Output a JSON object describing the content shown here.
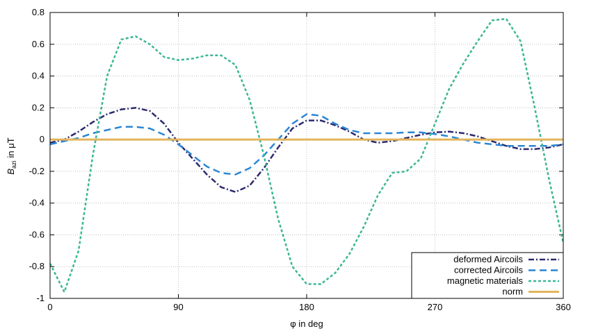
{
  "chart_data": {
    "type": "line",
    "xlabel": "φ in deg",
    "ylabel": {
      "symbol": "B",
      "subscript": "azi",
      "rest": "in μT"
    },
    "x": [
      0,
      10,
      20,
      30,
      40,
      50,
      60,
      70,
      80,
      90,
      100,
      110,
      120,
      130,
      140,
      150,
      160,
      170,
      180,
      190,
      200,
      210,
      220,
      230,
      240,
      250,
      260,
      270,
      280,
      290,
      300,
      310,
      320,
      330,
      340,
      350,
      360
    ],
    "series": [
      {
        "name": "deformed Aircoils",
        "color": "#2b2a6e",
        "dash": "8,3,2,3",
        "values": [
          -0.02,
          0.0,
          0.05,
          0.11,
          0.16,
          0.19,
          0.2,
          0.18,
          0.1,
          -0.02,
          -0.12,
          -0.22,
          -0.3,
          -0.33,
          -0.29,
          -0.18,
          -0.05,
          0.07,
          0.12,
          0.12,
          0.09,
          0.05,
          0.0,
          -0.02,
          -0.01,
          0.01,
          0.03,
          0.045,
          0.05,
          0.04,
          0.02,
          -0.01,
          -0.04,
          -0.06,
          -0.06,
          -0.05,
          -0.03
        ]
      },
      {
        "name": "corrected Aircoils",
        "color": "#2a86d4",
        "dash": "10,6",
        "values": [
          -0.03,
          -0.01,
          0.01,
          0.04,
          0.06,
          0.08,
          0.08,
          0.07,
          0.03,
          -0.03,
          -0.1,
          -0.17,
          -0.21,
          -0.22,
          -0.18,
          -0.1,
          0.0,
          0.1,
          0.16,
          0.15,
          0.1,
          0.06,
          0.04,
          0.04,
          0.04,
          0.045,
          0.045,
          0.035,
          0.02,
          0.0,
          -0.02,
          -0.03,
          -0.04,
          -0.04,
          -0.04,
          -0.04,
          -0.03
        ]
      },
      {
        "name": "magnetic materials",
        "color": "#3ab795",
        "dash": "4,3",
        "values": [
          -0.78,
          -0.96,
          -0.7,
          -0.1,
          0.4,
          0.63,
          0.65,
          0.6,
          0.52,
          0.5,
          0.51,
          0.53,
          0.53,
          0.47,
          0.25,
          -0.1,
          -0.5,
          -0.8,
          -0.91,
          -0.91,
          -0.84,
          -0.72,
          -0.55,
          -0.35,
          -0.21,
          -0.2,
          -0.12,
          0.1,
          0.32,
          0.48,
          0.62,
          0.75,
          0.76,
          0.62,
          0.2,
          -0.25,
          -0.65
        ]
      },
      {
        "name": "norm",
        "color": "#e3b35a",
        "dash": "none",
        "values": [
          0,
          0,
          0,
          0,
          0,
          0,
          0,
          0,
          0,
          0,
          0,
          0,
          0,
          0,
          0,
          0,
          0,
          0,
          0,
          0,
          0,
          0,
          0,
          0,
          0,
          0,
          0,
          0,
          0,
          0,
          0,
          0,
          0,
          0,
          0,
          0,
          0
        ]
      }
    ],
    "xlim": [
      0,
      360
    ],
    "xticks": [
      0,
      90,
      180,
      270,
      360
    ],
    "ylim": [
      -1,
      0.8
    ],
    "yticks": [
      0.8,
      0.6,
      0.4,
      0.2,
      0,
      -0.2,
      -0.4,
      -0.6,
      -0.8,
      -1
    ],
    "grid": true,
    "legend": "bottom-right"
  }
}
